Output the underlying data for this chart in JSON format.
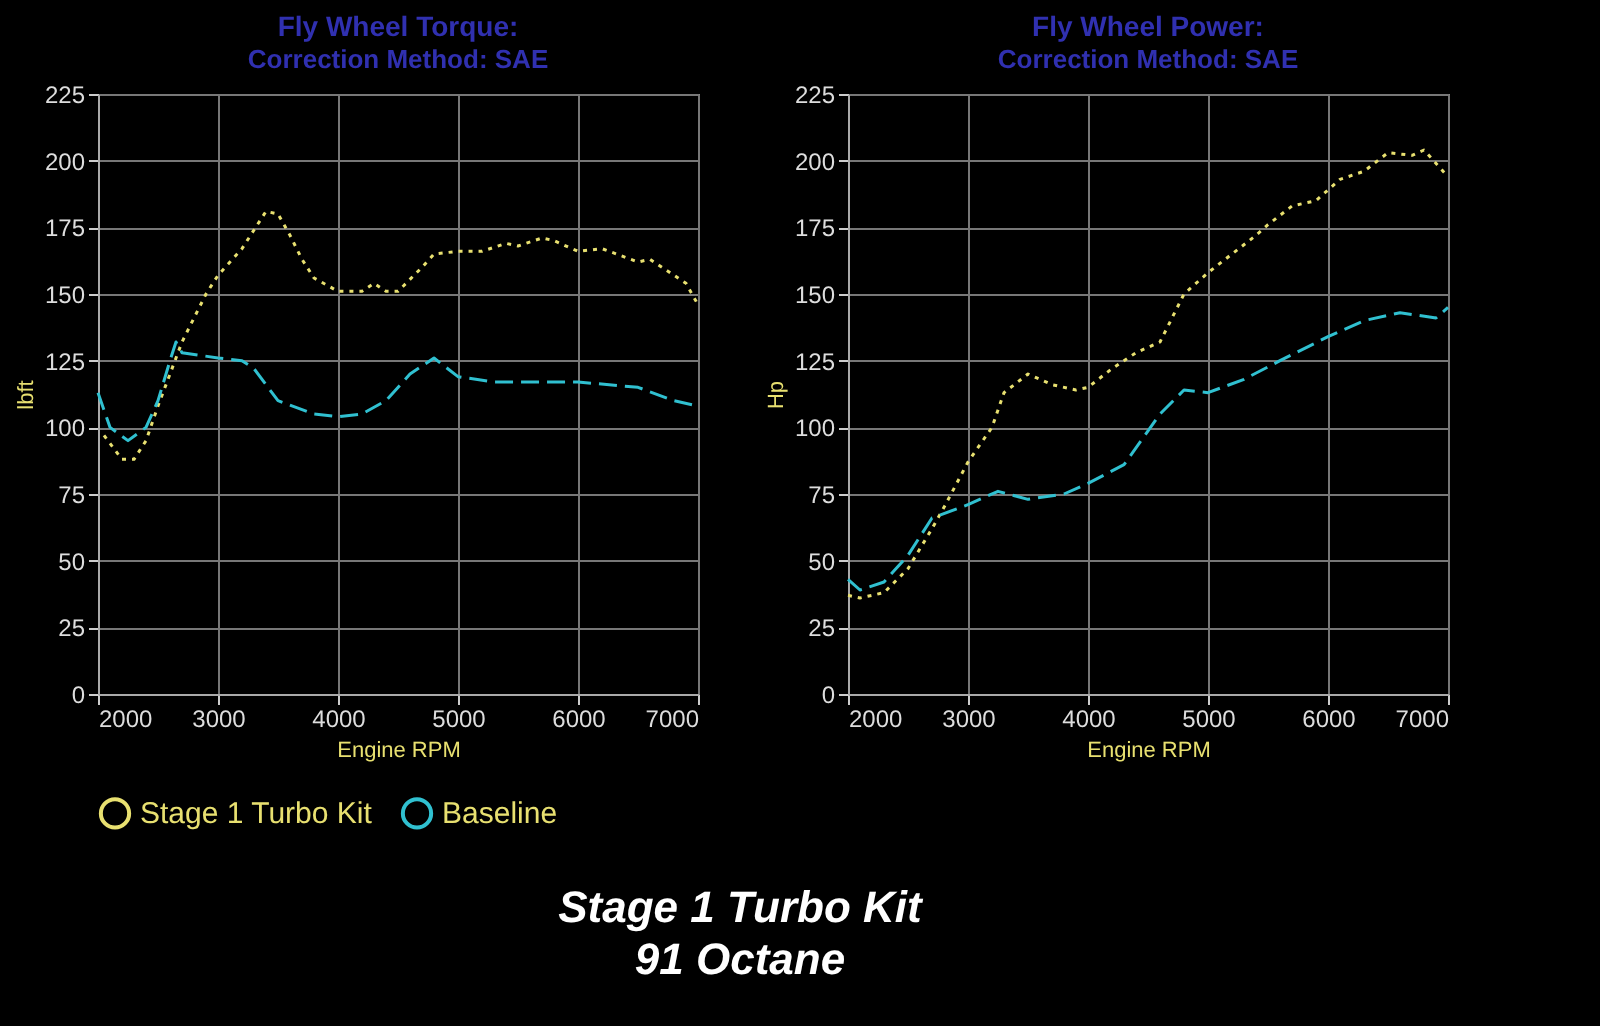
{
  "chart_data": [
    {
      "type": "line",
      "title": "Fly Wheel Torque:",
      "subtitle": "Correction Method: SAE",
      "xlabel": "Engine RPM",
      "ylabel": "lbft",
      "xlim": [
        2000,
        7000
      ],
      "xticks": [
        2000,
        3000,
        4000,
        5000,
        6000,
        7000
      ],
      "ylim": [
        0,
        225
      ],
      "yticks": [
        0,
        25,
        50,
        75,
        100,
        125,
        150,
        175,
        200,
        225
      ],
      "grid": true,
      "legend": "bottom left",
      "series": [
        {
          "name": "Stage 1 Turbo Kit",
          "color": "#e8e070",
          "line_style": "dotted",
          "x": [
            2050,
            2200,
            2300,
            2400,
            2500,
            2600,
            2700,
            2900,
            3000,
            3200,
            3400,
            3500,
            3600,
            3700,
            3800,
            4000,
            4200,
            4300,
            4400,
            4500,
            4700,
            4800,
            5000,
            5200,
            5400,
            5500,
            5700,
            5800,
            6000,
            6200,
            6500,
            6600,
            6800,
            6900,
            7000
          ],
          "values": [
            97,
            88,
            88,
            95,
            108,
            120,
            132,
            150,
            157,
            167,
            181,
            180,
            172,
            163,
            156,
            151,
            151,
            154,
            151,
            151,
            160,
            165,
            166,
            166,
            169,
            168,
            171,
            170,
            166,
            167,
            162,
            163,
            157,
            154,
            146
          ]
        },
        {
          "name": "Baseline",
          "color": "#30c0d0",
          "line_style": "dashed",
          "x": [
            2000,
            2100,
            2250,
            2400,
            2500,
            2600,
            2650,
            2700,
            3000,
            3200,
            3300,
            3500,
            3800,
            4000,
            4200,
            4400,
            4600,
            4800,
            5000,
            5300,
            5500,
            6000,
            6500,
            6800,
            7000
          ],
          "values": [
            113,
            100,
            95,
            100,
            110,
            125,
            132,
            128,
            126,
            125,
            122,
            110,
            105,
            104,
            105,
            110,
            120,
            126,
            119,
            117,
            117,
            117,
            115,
            110,
            108
          ]
        }
      ],
      "annotations": [
        "Stage 1 Turbo Kit",
        "91 Octane"
      ]
    },
    {
      "type": "line",
      "title": "Fly Wheel Power:",
      "subtitle": "Correction Method: SAE",
      "xlabel": "Engine RPM",
      "ylabel": "Hp",
      "xlim": [
        2000,
        7000
      ],
      "xticks": [
        2000,
        3000,
        4000,
        5000,
        6000,
        7000
      ],
      "ylim": [
        0,
        225
      ],
      "yticks": [
        0,
        25,
        50,
        75,
        100,
        125,
        150,
        175,
        200,
        225
      ],
      "grid": true,
      "legend": false,
      "series": [
        {
          "color": "#e8e070",
          "line_style": "dotted",
          "x": [
            2000,
            2100,
            2300,
            2500,
            2700,
            2800,
            3000,
            3200,
            3300,
            3500,
            3700,
            3900,
            4000,
            4200,
            4400,
            4600,
            4800,
            5000,
            5200,
            5400,
            5500,
            5700,
            5900,
            6100,
            6300,
            6500,
            6700,
            6800,
            7000
          ],
          "values": [
            37,
            36,
            38,
            47,
            62,
            70,
            87,
            100,
            113,
            120,
            116,
            114,
            115,
            122,
            128,
            132,
            150,
            158,
            165,
            172,
            176,
            183,
            185,
            193,
            196,
            203,
            202,
            204,
            194
          ]
        },
        {
          "color": "#30c0d0",
          "line_style": "dashed",
          "x": [
            2000,
            2100,
            2300,
            2500,
            2700,
            3000,
            3250,
            3500,
            3800,
            4000,
            4300,
            4600,
            4800,
            5000,
            5300,
            5600,
            6000,
            6300,
            6600,
            6900,
            7000
          ],
          "values": [
            43,
            39,
            42,
            52,
            66,
            71,
            76,
            73,
            75,
            79,
            86,
            105,
            114,
            113,
            118,
            125,
            134,
            140,
            143,
            141,
            145
          ]
        }
      ]
    }
  ]
}
